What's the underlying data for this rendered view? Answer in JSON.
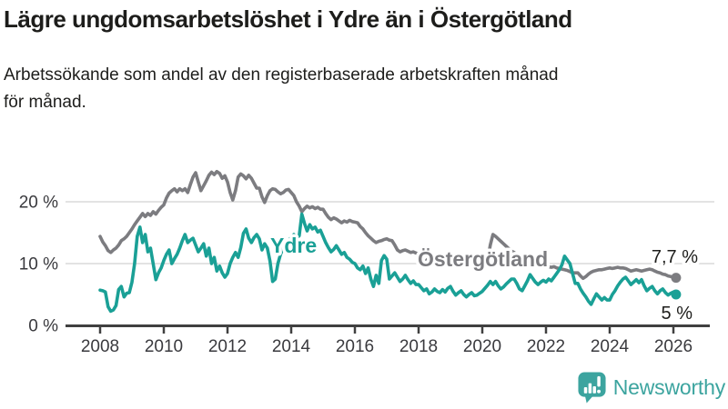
{
  "title": "Lägre ungdomsarbetslöshet i Ydre än i Östergötland",
  "subtitle_line1": "Arbetssökande som andel av den registerbaserade arbetskraften månad",
  "subtitle_line2": "för månad.",
  "colors": {
    "ydre": "#1aa096",
    "ostergotland": "#7c7c80",
    "grid": "#dadada",
    "axis": "#404040",
    "tick_text": "#3a3a3e",
    "title_text": "#1d1d1b",
    "logo": "#3ca49f"
  },
  "logo": {
    "text": "Newsworthy",
    "icon": "speech-bubble-bar-chart-icon"
  },
  "chart_data": {
    "type": "line",
    "title": "Lägre ungdomsarbetslöshet i Ydre än i Östergötland",
    "subtitle": "Arbetssökande som andel av den registerbaserade arbetskraften månad för månad.",
    "xlabel": "",
    "ylabel": "",
    "unit": "%",
    "x_start_month": "2008-01",
    "x_end_month": "2026-02",
    "x_ticks": [
      2008,
      2010,
      2012,
      2014,
      2016,
      2018,
      2020,
      2022,
      2024,
      2026
    ],
    "y_ticks": [
      {
        "value": 0,
        "label": "0 %"
      },
      {
        "value": 10,
        "label": "10 %"
      },
      {
        "value": 20,
        "label": "20 %"
      }
    ],
    "ylim": [
      0,
      26
    ],
    "grid": "horizontal-only",
    "legend_position": "inline-labels",
    "series": [
      {
        "name": "Östergötland",
        "end_label": "7,7 %",
        "end_value": 7.7,
        "values": [
          14.4,
          13.5,
          12.9,
          12.1,
          11.8,
          12.2,
          12.5,
          13.0,
          13.7,
          14.0,
          14.4,
          15.0,
          15.6,
          16.3,
          16.9,
          17.5,
          18.1,
          17.6,
          18.1,
          17.8,
          18.4,
          18.0,
          18.6,
          19.1,
          19.5,
          20.6,
          21.4,
          21.8,
          22.1,
          21.6,
          22.1,
          21.8,
          22.1,
          21.5,
          22.8,
          24.0,
          24.7,
          23.2,
          21.8,
          22.6,
          23.4,
          24.3,
          24.8,
          24.4,
          24.9,
          24.6,
          23.8,
          24.2,
          23.2,
          21.5,
          20.3,
          21.8,
          24.0,
          24.5,
          24.2,
          23.7,
          24.3,
          23.8,
          23.0,
          22.2,
          22.2,
          20.8,
          19.9,
          21.0,
          21.8,
          22.1,
          22.0,
          21.6,
          21.3,
          21.5,
          21.9,
          22.0,
          21.5,
          21.0,
          20.0,
          19.3,
          18.4,
          18.9,
          19.3,
          19.0,
          19.2,
          18.9,
          19.1,
          18.8,
          18.8,
          18.1,
          17.5,
          17.1,
          17.4,
          17.2,
          16.9,
          16.6,
          16.9,
          16.7,
          17.0,
          16.8,
          16.7,
          16.6,
          16.0,
          15.6,
          15.0,
          14.5,
          14.1,
          13.7,
          13.4,
          13.6,
          13.7,
          13.9,
          14.0,
          13.8,
          13.7,
          13.0,
          12.2,
          11.9,
          12.1,
          12.2,
          12.0,
          11.8,
          11.9,
          11.7,
          11.5,
          10.8,
          9.7,
          10.5,
          11.0,
          10.8,
          10.5,
          10.3,
          10.6,
          10.4,
          10.2,
          10.5,
          10.5,
          10.2,
          9.9,
          10.1,
          9.8,
          9.6,
          9.9,
          9.7,
          9.5,
          9.8,
          9.6,
          9.3,
          9.0,
          9.4,
          10.5,
          13.0,
          14.7,
          14.4,
          14.0,
          13.6,
          13.2,
          12.8,
          12.4,
          12.0,
          11.8,
          11.4,
          11.0,
          10.7,
          10.4,
          10.2,
          10.0,
          9.9,
          9.7,
          9.6,
          9.7,
          9.6,
          9.6,
          9.5,
          9.4,
          9.5,
          9.3,
          9.2,
          9.1,
          9.0,
          8.9,
          8.7,
          8.5,
          8.5,
          8.5,
          8.0,
          7.6,
          7.9,
          8.3,
          8.6,
          8.8,
          8.9,
          9.0,
          9.0,
          9.1,
          9.2,
          9.3,
          9.2,
          9.3,
          9.4,
          9.3,
          9.3,
          9.2,
          9.0,
          8.8,
          8.9,
          9.0,
          8.9,
          8.8,
          8.9,
          9.0,
          9.1,
          9.0,
          8.8,
          8.6,
          8.5,
          8.3,
          8.2,
          8.0,
          7.9,
          7.8,
          7.7
        ]
      },
      {
        "name": "Ydre",
        "end_label": "5 %",
        "end_value": 5.0,
        "values": [
          5.7,
          5.6,
          5.4,
          3.0,
          2.3,
          2.5,
          3.2,
          5.8,
          6.3,
          4.6,
          5.2,
          5.3,
          7.0,
          10.0,
          14.4,
          15.9,
          13.4,
          14.7,
          11.9,
          12.5,
          10.0,
          7.4,
          8.5,
          9.3,
          10.5,
          11.5,
          12.2,
          10.0,
          10.8,
          11.5,
          12.5,
          13.7,
          14.7,
          13.4,
          13.8,
          14.1,
          13.0,
          11.9,
          12.5,
          13.2,
          11.2,
          12.5,
          10.0,
          11.0,
          8.8,
          9.6,
          8.5,
          7.8,
          8.4,
          10.0,
          11.0,
          11.8,
          11.0,
          12.6,
          14.9,
          15.6,
          14.1,
          13.4,
          14.2,
          14.7,
          14.0,
          12.2,
          13.2,
          12.5,
          10.4,
          7.1,
          7.5,
          10.0,
          11.5,
          12.5,
          13.0,
          13.7,
          14.2,
          14.7,
          14.1,
          14.5,
          18.0,
          16.5,
          15.3,
          16.3,
          15.6,
          15.9,
          15.1,
          15.4,
          14.4,
          13.4,
          12.6,
          11.9,
          12.3,
          12.9,
          12.2,
          11.5,
          11.8,
          11.0,
          10.7,
          10.2,
          10.0,
          9.3,
          9.0,
          9.6,
          8.4,
          9.3,
          7.5,
          6.3,
          8.1,
          6.8,
          10.5,
          11.3,
          10.7,
          7.5,
          8.0,
          8.5,
          7.8,
          7.1,
          7.5,
          8.1,
          7.4,
          6.8,
          7.2,
          6.6,
          6.6,
          6.1,
          5.6,
          5.9,
          5.1,
          5.4,
          5.9,
          5.5,
          5.3,
          5.8,
          5.4,
          6.0,
          6.3,
          5.5,
          4.9,
          5.3,
          5.6,
          5.0,
          4.6,
          5.0,
          5.3,
          4.8,
          4.9,
          5.2,
          5.5,
          6.0,
          6.5,
          7.1,
          6.6,
          7.1,
          6.4,
          5.9,
          6.2,
          6.7,
          7.1,
          7.5,
          7.5,
          6.8,
          5.9,
          5.6,
          6.4,
          7.2,
          8.2,
          7.6,
          7.0,
          6.6,
          7.0,
          7.3,
          7.0,
          7.5,
          7.2,
          7.8,
          8.4,
          9.0,
          9.8,
          11.2,
          10.6,
          10.0,
          8.4,
          6.8,
          6.8,
          5.9,
          5.2,
          4.6,
          3.9,
          3.4,
          4.3,
          5.1,
          4.6,
          4.1,
          4.5,
          4.1,
          4.1,
          5.0,
          5.6,
          6.4,
          7.0,
          7.5,
          7.8,
          7.2,
          6.6,
          7.0,
          7.4,
          6.9,
          7.4,
          6.4,
          5.6,
          6.0,
          6.3,
          5.6,
          5.1,
          5.6,
          5.9,
          5.3,
          4.9,
          5.2,
          5.4,
          5.0
        ]
      }
    ]
  }
}
